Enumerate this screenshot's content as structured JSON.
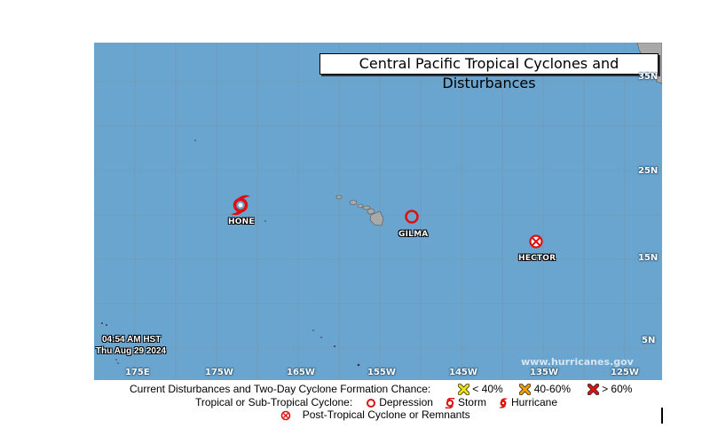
{
  "map": {
    "title": "Central Pacific Tropical Cyclones and Disturbances",
    "longitude_labels": [
      "175E",
      "175W",
      "165W",
      "155W",
      "145W",
      "135W",
      "125W"
    ],
    "latitude_labels": [
      "35N",
      "25N",
      "15N",
      "5N"
    ],
    "ocean_color": "#69a5cf",
    "land_color": "#a9a9a9"
  },
  "storms": [
    {
      "name": "HONE",
      "type": "hurricane",
      "color": "#dd1111"
    },
    {
      "name": "GILMA",
      "type": "depression",
      "color": "#dd1111"
    },
    {
      "name": "HECTOR",
      "type": "post-tropical",
      "color": "#dd1111"
    }
  ],
  "timestamp": {
    "time": "04:54 AM HST",
    "date": "Thu Aug 29 2024"
  },
  "credit": "www.hurricanes.gov",
  "legend": {
    "disturbances_label": "Current Disturbances and Two-Day Cyclone Formation Chance:",
    "chance_low": "< 40%",
    "chance_mid": "40-60%",
    "chance_high": "> 60%",
    "cyclone_label": "Tropical or Sub-Tropical Cyclone:",
    "depression": "Depression",
    "storm": "Storm",
    "hurricane": "Hurricane",
    "post_tropical": "Post-Tropical Cyclone or Remnants",
    "colors": {
      "low": "#f2e600",
      "mid": "#f5a000",
      "high": "#dd1111"
    }
  }
}
